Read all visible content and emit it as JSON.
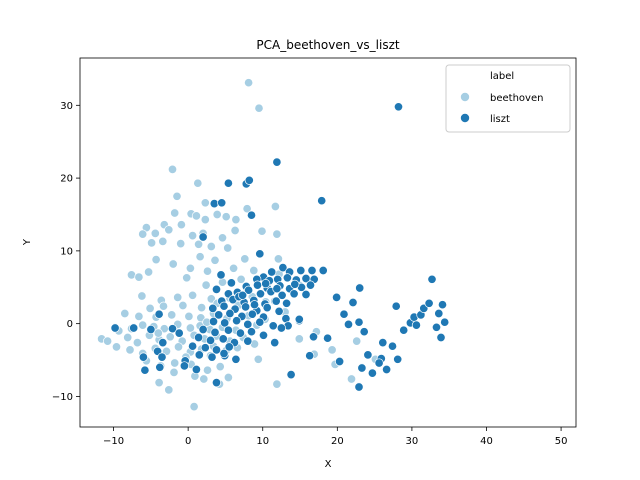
{
  "chart_data": {
    "type": "scatter",
    "title": "PCA_beethoven_vs_liszt",
    "xlabel": "X",
    "ylabel": "Y",
    "xlim": [
      -14.5,
      52
    ],
    "ylim": [
      -14.2,
      36.5
    ],
    "xticks": [
      -10,
      0,
      10,
      20,
      30,
      40,
      50
    ],
    "yticks": [
      -10,
      0,
      10,
      20,
      30
    ],
    "grid": false,
    "legend": {
      "title": "label",
      "placement": "top-right",
      "entries": [
        {
          "name": "beethoven",
          "color": "#a6cee3"
        },
        {
          "name": "liszt",
          "color": "#1f78b4"
        }
      ]
    },
    "series": [
      {
        "name": "beethoven",
        "color": "#a6cee3",
        "points": [
          [
            8.1,
            33.1
          ],
          [
            9.5,
            29.6
          ],
          [
            -2.1,
            21.2
          ],
          [
            1.3,
            19.3
          ],
          [
            -1.5,
            17.5
          ],
          [
            2.3,
            16.6
          ],
          [
            7.9,
            15.8
          ],
          [
            11.7,
            16.1
          ],
          [
            -1.8,
            15.2
          ],
          [
            0.4,
            15.1
          ],
          [
            1.1,
            14.8
          ],
          [
            3.9,
            15.0
          ],
          [
            5.1,
            14.7
          ],
          [
            6.4,
            14.3
          ],
          [
            -5.6,
            13.2
          ],
          [
            -3.2,
            13.6
          ],
          [
            -0.9,
            13.6
          ],
          [
            2.3,
            14.3
          ],
          [
            -6.1,
            12.3
          ],
          [
            -4.4,
            12.4
          ],
          [
            -2.6,
            12.9
          ],
          [
            0.6,
            12.1
          ],
          [
            2.0,
            12.4
          ],
          [
            4.6,
            11.8
          ],
          [
            6.3,
            12.8
          ],
          [
            9.9,
            12.7
          ],
          [
            11.9,
            12.3
          ],
          [
            -4.9,
            11.1
          ],
          [
            -3.4,
            11.3
          ],
          [
            -1.0,
            11.0
          ],
          [
            1.4,
            10.9
          ],
          [
            3.1,
            10.6
          ],
          [
            5.3,
            10.4
          ],
          [
            -4.3,
            8.8
          ],
          [
            1.6,
            9.2
          ],
          [
            3.6,
            8.7
          ],
          [
            7.6,
            8.9
          ],
          [
            12.1,
            8.9
          ],
          [
            -2.0,
            8.2
          ],
          [
            0.3,
            7.6
          ],
          [
            2.6,
            7.2
          ],
          [
            6.1,
            7.6
          ],
          [
            8.8,
            7.3
          ],
          [
            12.2,
            6.8
          ],
          [
            -7.6,
            6.7
          ],
          [
            -6.6,
            6.4
          ],
          [
            -5.3,
            7.1
          ],
          [
            -0.2,
            6.3
          ],
          [
            2.4,
            5.3
          ],
          [
            4.6,
            5.7
          ],
          [
            7.1,
            6.1
          ],
          [
            10.8,
            5.7
          ],
          [
            14.9,
            5.3
          ],
          [
            -6.2,
            3.8
          ],
          [
            -3.6,
            3.2
          ],
          [
            -1.4,
            3.6
          ],
          [
            0.6,
            3.9
          ],
          [
            3.1,
            3.4
          ],
          [
            5.6,
            3.5
          ],
          [
            8.6,
            3.7
          ],
          [
            11.6,
            3.1
          ],
          [
            -5.1,
            2.1
          ],
          [
            -3.3,
            2.4
          ],
          [
            -0.7,
            2.5
          ],
          [
            1.8,
            2.2
          ],
          [
            3.9,
            2.8
          ],
          [
            6.7,
            2.5
          ],
          [
            -8.5,
            1.4
          ],
          [
            -6.6,
            1.0
          ],
          [
            -4.3,
            0.9
          ],
          [
            -2.2,
            1.2
          ],
          [
            0.1,
            1.0
          ],
          [
            1.7,
            0.8
          ],
          [
            3.4,
            1.4
          ],
          [
            5.2,
            0.7
          ],
          [
            8.1,
            1.1
          ],
          [
            10.3,
            0.6
          ],
          [
            -11.6,
            -2.1
          ],
          [
            -10.8,
            -2.4
          ],
          [
            -9.3,
            -1.0
          ],
          [
            -7.6,
            -0.7
          ],
          [
            -6.1,
            -0.2
          ],
          [
            -4.6,
            -0.4
          ],
          [
            -3.2,
            -0.7
          ],
          [
            -1.4,
            -0.1
          ],
          [
            0.3,
            -0.6
          ],
          [
            1.6,
            -0.3
          ],
          [
            2.9,
            -0.8
          ],
          [
            4.6,
            -0.5
          ],
          [
            6.4,
            -0.9
          ],
          [
            9.2,
            -0.2
          ],
          [
            -8.1,
            -1.9
          ],
          [
            -6.8,
            -2.6
          ],
          [
            -5.2,
            -1.6
          ],
          [
            -3.9,
            -2.2
          ],
          [
            -2.4,
            -1.8
          ],
          [
            -0.8,
            -2.4
          ],
          [
            0.8,
            -1.6
          ],
          [
            2.2,
            -2.1
          ],
          [
            3.8,
            -1.7
          ],
          [
            5.6,
            -2.4
          ],
          [
            7.4,
            -1.9
          ],
          [
            -7.8,
            -3.6
          ],
          [
            -6.1,
            -4.1
          ],
          [
            -4.4,
            -3.4
          ],
          [
            -2.9,
            -3.8
          ],
          [
            -1.3,
            -3.2
          ],
          [
            0.3,
            -3.9
          ],
          [
            1.8,
            -3.5
          ],
          [
            3.4,
            -3.1
          ],
          [
            5.1,
            -3.7
          ],
          [
            -5.6,
            -5.1
          ],
          [
            -3.7,
            -5.8
          ],
          [
            -1.8,
            -5.4
          ],
          [
            0.4,
            -5.6
          ],
          [
            2.6,
            -6.4
          ],
          [
            4.3,
            -5.9
          ],
          [
            9.4,
            -4.9
          ],
          [
            -1.9,
            -6.7
          ],
          [
            0.9,
            -7.2
          ],
          [
            2.1,
            -7.6
          ],
          [
            5.4,
            -7.4
          ],
          [
            -3.9,
            -8.1
          ],
          [
            4.2,
            -8.3
          ],
          [
            11.9,
            -8.3
          ],
          [
            0.8,
            -11.4
          ],
          [
            19.3,
            -3.6
          ],
          [
            22.6,
            -2.4
          ],
          [
            19.7,
            -5.6
          ],
          [
            21.9,
            -7.6
          ],
          [
            16.9,
            -4.2
          ],
          [
            25.1,
            -4.9
          ],
          [
            14.9,
            -2.1
          ],
          [
            17.2,
            -1.1
          ],
          [
            -9.6,
            -3.2
          ],
          [
            -0.3,
            -4.6
          ],
          [
            3.0,
            -4.4
          ],
          [
            6.6,
            -3.3
          ],
          [
            -2.6,
            -9.1
          ],
          [
            8.9,
            -2.8
          ],
          [
            13.0,
            1.6
          ],
          [
            10.4,
            3.0
          ],
          [
            -4.0,
            -1.3
          ],
          [
            2.5,
            0.2
          ]
        ]
      },
      {
        "name": "liszt",
        "color": "#1f78b4",
        "points": [
          [
            28.2,
            29.8
          ],
          [
            11.9,
            22.2
          ],
          [
            7.8,
            19.2
          ],
          [
            8.2,
            19.7
          ],
          [
            5.4,
            19.3
          ],
          [
            17.9,
            16.9
          ],
          [
            3.5,
            16.5
          ],
          [
            4.5,
            16.6
          ],
          [
            8.5,
            14.9
          ],
          [
            2.0,
            11.9
          ],
          [
            9.6,
            9.6
          ],
          [
            4.4,
            6.7
          ],
          [
            10.1,
            6.4
          ],
          [
            11.2,
            7.1
          ],
          [
            12.7,
            7.7
          ],
          [
            13.6,
            7.1
          ],
          [
            15.1,
            7.3
          ],
          [
            16.6,
            7.3
          ],
          [
            18.1,
            7.3
          ],
          [
            9.2,
            6.1
          ],
          [
            10.9,
            5.9
          ],
          [
            12.0,
            6.1
          ],
          [
            13.3,
            6.3
          ],
          [
            14.5,
            6.0
          ],
          [
            15.8,
            6.2
          ],
          [
            16.9,
            6.1
          ],
          [
            7.8,
            5.1
          ],
          [
            9.3,
            5.3
          ],
          [
            10.6,
            4.9
          ],
          [
            12.3,
            5.2
          ],
          [
            13.6,
            4.8
          ],
          [
            15.2,
            5.0
          ],
          [
            16.4,
            5.3
          ],
          [
            5.4,
            4.1
          ],
          [
            6.6,
            4.3
          ],
          [
            8.1,
            4.6
          ],
          [
            9.7,
            4.1
          ],
          [
            11.1,
            4.4
          ],
          [
            12.6,
            3.9
          ],
          [
            14.2,
            4.1
          ],
          [
            15.8,
            4.0
          ],
          [
            4.5,
            3.1
          ],
          [
            6.0,
            3.3
          ],
          [
            7.5,
            2.9
          ],
          [
            8.8,
            3.2
          ],
          [
            10.3,
            2.7
          ],
          [
            11.8,
            3.1
          ],
          [
            13.2,
            2.8
          ],
          [
            3.3,
            2.1
          ],
          [
            4.8,
            2.4
          ],
          [
            6.3,
            2.0
          ],
          [
            7.7,
            2.3
          ],
          [
            9.2,
            1.8
          ],
          [
            10.6,
            2.2
          ],
          [
            12.2,
            1.7
          ],
          [
            4.1,
            1.2
          ],
          [
            5.6,
            1.4
          ],
          [
            7.2,
            1.0
          ],
          [
            8.6,
            1.3
          ],
          [
            10.1,
            0.9
          ],
          [
            13.1,
            0.7
          ],
          [
            14.9,
            0.4
          ],
          [
            3.4,
            0.3
          ],
          [
            4.9,
            0.1
          ],
          [
            6.5,
            0.4
          ],
          [
            8.0,
            -0.1
          ],
          [
            9.6,
            0.2
          ],
          [
            11.4,
            -0.3
          ],
          [
            13.4,
            -0.3
          ],
          [
            2.0,
            -0.8
          ],
          [
            3.6,
            -1.2
          ],
          [
            5.4,
            -0.9
          ],
          [
            7.0,
            -1.3
          ],
          [
            8.5,
            -1.1
          ],
          [
            1.4,
            -1.9
          ],
          [
            3.0,
            -2.3
          ],
          [
            4.7,
            -2.1
          ],
          [
            6.2,
            -2.6
          ],
          [
            8.0,
            -2.4
          ],
          [
            0.6,
            -3.1
          ],
          [
            2.3,
            -3.3
          ],
          [
            3.8,
            -3.6
          ],
          [
            5.5,
            -3.2
          ],
          [
            1.5,
            -4.3
          ],
          [
            3.2,
            -4.6
          ],
          [
            4.9,
            -4.4
          ],
          [
            6.4,
            -4.9
          ],
          [
            -0.4,
            -5.1
          ],
          [
            -4.1,
            -3.8
          ],
          [
            -3.5,
            -4.6
          ],
          [
            -5.8,
            -6.4
          ],
          [
            -3.8,
            -6.0
          ],
          [
            -0.5,
            -5.8
          ],
          [
            1.1,
            -6.3
          ],
          [
            3.8,
            -8.1
          ],
          [
            4.8,
            -4.1
          ],
          [
            -9.8,
            -0.6
          ],
          [
            -7.3,
            -0.6
          ],
          [
            -5.0,
            -0.8
          ],
          [
            -6.0,
            -4.6
          ],
          [
            -2.1,
            -0.7
          ],
          [
            -3.9,
            1.3
          ],
          [
            -3.4,
            -2.6
          ],
          [
            -1.2,
            -1.3
          ],
          [
            19.9,
            3.6
          ],
          [
            22.1,
            2.9
          ],
          [
            20.9,
            1.3
          ],
          [
            22.9,
            0.2
          ],
          [
            18.7,
            -2.0
          ],
          [
            21.5,
            -0.1
          ],
          [
            23.6,
            -1.1
          ],
          [
            20.3,
            -5.2
          ],
          [
            24.1,
            -4.3
          ],
          [
            24.7,
            -6.8
          ],
          [
            22.9,
            -8.7
          ],
          [
            25.9,
            -4.8
          ],
          [
            25.6,
            -5.4
          ],
          [
            26.6,
            -6.3
          ],
          [
            23.3,
            -6.1
          ],
          [
            27.4,
            -3.1
          ],
          [
            26.1,
            -2.6
          ],
          [
            28.1,
            -4.9
          ],
          [
            28.9,
            -0.9
          ],
          [
            29.8,
            0.1
          ],
          [
            30.3,
            0.9
          ],
          [
            31.2,
            1.2
          ],
          [
            30.6,
            -0.2
          ],
          [
            31.6,
            2.1
          ],
          [
            32.3,
            2.8
          ],
          [
            33.6,
            1.4
          ],
          [
            32.7,
            6.1
          ],
          [
            34.1,
            2.6
          ],
          [
            34.4,
            0.2
          ],
          [
            33.3,
            -0.5
          ],
          [
            33.9,
            -1.9
          ],
          [
            27.9,
            2.4
          ],
          [
            23.0,
            4.9
          ],
          [
            16.3,
            -4.4
          ],
          [
            14.9,
            0.6
          ],
          [
            13.8,
            -7.0
          ],
          [
            16.8,
            -1.8
          ],
          [
            10.1,
            -1.6
          ],
          [
            11.6,
            -2.6
          ],
          [
            12.5,
            -0.6
          ],
          [
            5.8,
            5.6
          ],
          [
            6.8,
            3.7
          ],
          [
            8.9,
            2.6
          ],
          [
            3.8,
            4.7
          ],
          [
            11.9,
            4.8
          ],
          [
            14.3,
            5.4
          ],
          [
            10.4,
            5.5
          ],
          [
            7.3,
            3.9
          ]
        ]
      }
    ]
  }
}
